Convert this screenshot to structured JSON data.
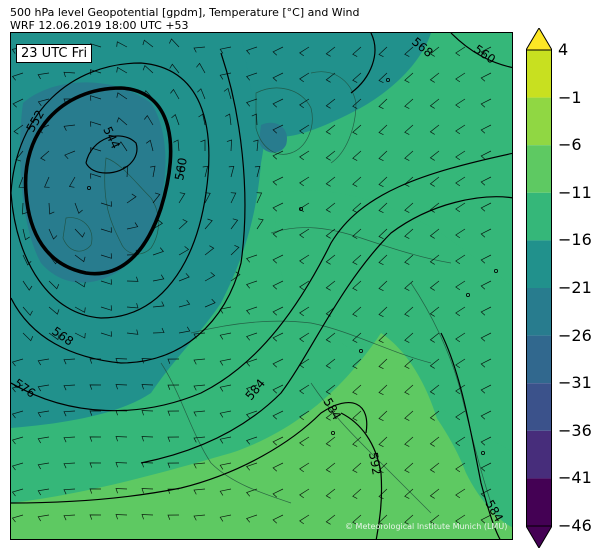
{
  "header": {
    "line1": "500 hPa level Geopotential [gpdm], Temperature [°C] and Wind",
    "line2": "WRF 12.06.2019 18:00 UTC +53"
  },
  "map": {
    "time_label": "23 UTC Fri",
    "credit": "© Meteorological Institute Munich (LMU)",
    "contour_labels": [
      "544",
      "552",
      "560",
      "568",
      "568",
      "560",
      "576",
      "584",
      "584",
      "592",
      "584"
    ]
  },
  "colorbar": {
    "ticks": [
      "4",
      "−1",
      "−6",
      "−11",
      "−16",
      "−21",
      "−26",
      "−31",
      "−36",
      "−41",
      "−46"
    ],
    "colors": [
      "#fde725",
      "#c8e020",
      "#90d743",
      "#5ec962",
      "#35b779",
      "#21918c",
      "#287c8e",
      "#31688e",
      "#3b528b",
      "#472d7b",
      "#440154"
    ]
  }
}
